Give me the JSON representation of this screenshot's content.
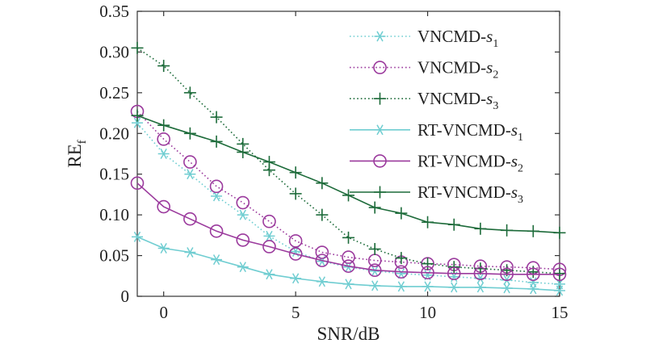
{
  "chart_data": {
    "type": "line",
    "xlabel": "SNR/dB",
    "ylabel": "RE",
    "ylabel_subscript": "f",
    "xlim": [
      -1,
      15
    ],
    "ylim": [
      0,
      0.35
    ],
    "xticks": [
      {
        "value": 0,
        "label": "0"
      },
      {
        "value": 5,
        "label": "5"
      },
      {
        "value": 10,
        "label": "10"
      },
      {
        "value": 15,
        "label": "15"
      }
    ],
    "yticks": [
      {
        "value": 0,
        "label": "0"
      },
      {
        "value": 0.05,
        "label": "0.05"
      },
      {
        "value": 0.1,
        "label": "0.10"
      },
      {
        "value": 0.15,
        "label": "0.15"
      },
      {
        "value": 0.2,
        "label": "0.20"
      },
      {
        "value": 0.25,
        "label": "0.25"
      },
      {
        "value": 0.3,
        "label": "0.30"
      },
      {
        "value": 0.35,
        "label": "0.35"
      }
    ],
    "grid": false,
    "legend_position": "top-right",
    "x": [
      -1,
      0,
      1,
      2,
      3,
      4,
      5,
      6,
      7,
      8,
      9,
      10,
      11,
      12,
      13,
      14,
      15
    ],
    "series": [
      {
        "key": "vncmd_s1",
        "name_main": "VNCMD-",
        "name_var": "s",
        "name_sub": "1",
        "color": "#6fcdd1",
        "marker": "asterisk",
        "line_style": "dotted",
        "values": [
          0.213,
          0.175,
          0.15,
          0.123,
          0.1,
          0.074,
          0.055,
          0.043,
          0.036,
          0.031,
          0.028,
          0.026,
          0.024,
          0.022,
          0.02,
          0.017,
          0.015
        ]
      },
      {
        "key": "vncmd_s2",
        "name_main": "VNCMD-",
        "name_var": "s",
        "name_sub": "2",
        "color": "#9b3a9d",
        "marker": "circle",
        "line_style": "dotted",
        "values": [
          0.227,
          0.193,
          0.165,
          0.135,
          0.115,
          0.092,
          0.068,
          0.054,
          0.048,
          0.044,
          0.042,
          0.04,
          0.039,
          0.037,
          0.036,
          0.035,
          0.033
        ]
      },
      {
        "key": "vncmd_s3",
        "name_main": "VNCMD-",
        "name_var": "s",
        "name_sub": "3",
        "color": "#1d6b3a",
        "marker": "plus",
        "line_style": "dotted",
        "values": [
          0.305,
          0.283,
          0.25,
          0.22,
          0.187,
          0.155,
          0.126,
          0.1,
          0.072,
          0.058,
          0.047,
          0.04,
          0.036,
          0.034,
          0.032,
          0.03,
          0.028
        ]
      },
      {
        "key": "rt_vncmd_s1",
        "name_main": "RT-VNCMD-",
        "name_var": "s",
        "name_sub": "1",
        "color": "#6fcdd1",
        "marker": "asterisk",
        "line_style": "solid",
        "values": [
          0.073,
          0.059,
          0.054,
          0.045,
          0.036,
          0.027,
          0.022,
          0.018,
          0.015,
          0.013,
          0.012,
          0.012,
          0.011,
          0.011,
          0.01,
          0.009,
          0.007
        ]
      },
      {
        "key": "rt_vncmd_s2",
        "name_main": "RT-VNCMD-",
        "name_var": "s",
        "name_sub": "2",
        "color": "#9b3a9d",
        "marker": "circle",
        "line_style": "solid",
        "values": [
          0.139,
          0.11,
          0.095,
          0.08,
          0.069,
          0.061,
          0.052,
          0.044,
          0.037,
          0.032,
          0.03,
          0.029,
          0.028,
          0.028,
          0.027,
          0.027,
          0.027
        ]
      },
      {
        "key": "rt_vncmd_s3",
        "name_main": "RT-VNCMD-",
        "name_var": "s",
        "name_sub": "3",
        "color": "#1d6b3a",
        "marker": "plus",
        "line_style": "solid",
        "values": [
          0.222,
          0.21,
          0.2,
          0.19,
          0.177,
          0.165,
          0.152,
          0.139,
          0.124,
          0.109,
          0.102,
          0.091,
          0.088,
          0.083,
          0.081,
          0.08,
          0.078
        ]
      }
    ]
  }
}
